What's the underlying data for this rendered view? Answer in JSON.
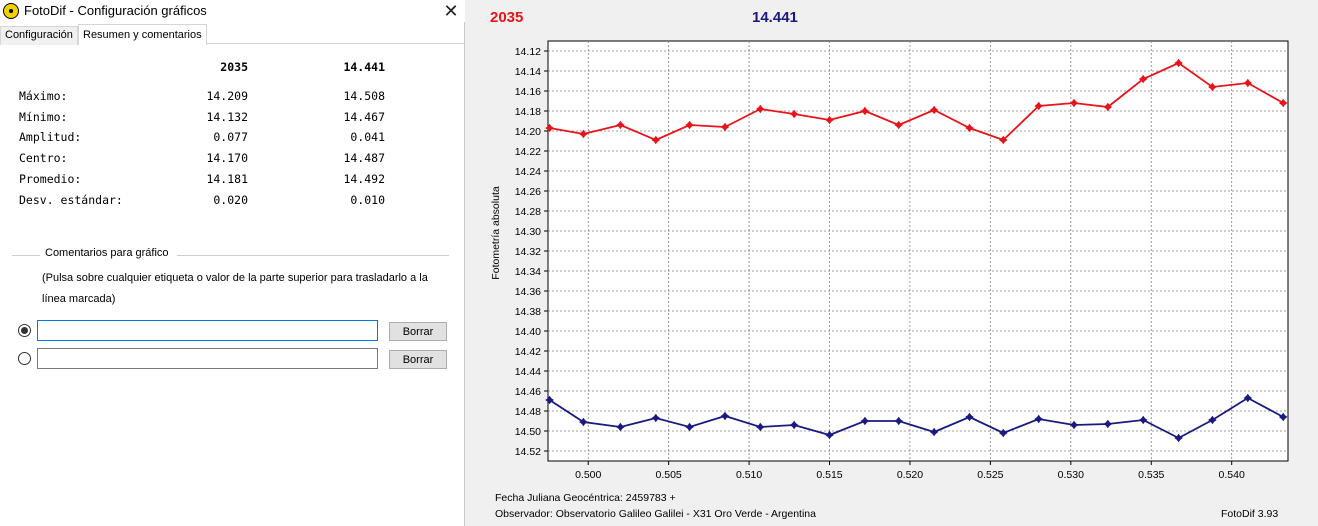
{
  "window": {
    "title": "FotoDif - Configuración gráficos",
    "close_icon": "close-icon"
  },
  "tabs": [
    {
      "label": "Configuración",
      "active": false
    },
    {
      "label": "Resumen y comentarios",
      "active": true
    }
  ],
  "summary": {
    "headers": [
      "2035",
      "14.441"
    ],
    "rows": [
      {
        "label": "Máximo:",
        "v1": "14.209",
        "v2": "14.508"
      },
      {
        "label": "Mínimo:",
        "v1": "14.132",
        "v2": "14.467"
      },
      {
        "label": "Amplitud:",
        "v1": "0.077",
        "v2": "0.041"
      },
      {
        "label": "Centro:",
        "v1": "14.170",
        "v2": "14.487"
      },
      {
        "label": "Promedio:",
        "v1": "14.181",
        "v2": "14.492"
      },
      {
        "label": "Desv. estándar:",
        "v1": "0.020",
        "v2": "0.010"
      }
    ]
  },
  "comments": {
    "group_title": "Comentarios para gráfico",
    "description": "(Pulsa sobre cualquier etiqueta o valor de la parte superior para trasladarlo a la línea marcada)",
    "lines": [
      {
        "value": "",
        "selected": true,
        "button": "Borrar"
      },
      {
        "value": "",
        "selected": false,
        "button": "Borrar"
      }
    ]
  },
  "chart_header": {
    "label1": "2035",
    "label2": "14.441",
    "color1": "#e8141a",
    "color2": "#1a1a80"
  },
  "chart_data": {
    "type": "line",
    "ylabel": "Fotometría absoluta",
    "xlabel": "",
    "xlim": [
      0.4975,
      0.5435
    ],
    "ylim": [
      14.11,
      14.53
    ],
    "y_inverted": true,
    "grid": true,
    "x_ticks": [
      0.5,
      0.505,
      0.51,
      0.515,
      0.52,
      0.525,
      0.53,
      0.535,
      0.54
    ],
    "x_tick_labels": [
      "0.500",
      "0.505",
      "0.510",
      "0.515",
      "0.520",
      "0.525",
      "0.530",
      "0.535",
      "0.540"
    ],
    "y_ticks": [
      14.12,
      14.14,
      14.16,
      14.18,
      14.2,
      14.22,
      14.24,
      14.26,
      14.28,
      14.3,
      14.32,
      14.34,
      14.36,
      14.38,
      14.4,
      14.42,
      14.44,
      14.46,
      14.48,
      14.5,
      14.52
    ],
    "y_tick_labels": [
      "14.12",
      "14.14",
      "14.16",
      "14.18",
      "14.20",
      "14.22",
      "14.24",
      "14.26",
      "14.28",
      "14.30",
      "14.32",
      "14.34",
      "14.36",
      "14.38",
      "14.40",
      "14.42",
      "14.44",
      "14.46",
      "14.48",
      "14.50",
      "14.52"
    ],
    "x": [
      0.4976,
      0.4997,
      0.502,
      0.5042,
      0.5063,
      0.5085,
      0.5107,
      0.5128,
      0.515,
      0.5172,
      0.5193,
      0.5215,
      0.5237,
      0.5258,
      0.528,
      0.5302,
      0.5323,
      0.5345,
      0.5367,
      0.5388,
      0.541,
      0.5432
    ],
    "series": [
      {
        "name": "2035",
        "color": "#e8141a",
        "values": [
          14.197,
          14.203,
          14.194,
          14.209,
          14.194,
          14.196,
          14.178,
          14.183,
          14.189,
          14.18,
          14.194,
          14.179,
          14.197,
          14.209,
          14.175,
          14.172,
          14.176,
          14.148,
          14.132,
          14.156,
          14.152,
          14.172
        ]
      },
      {
        "name": "14.441",
        "color": "#1a1a80",
        "values": [
          14.469,
          14.491,
          14.496,
          14.487,
          14.496,
          14.485,
          14.496,
          14.494,
          14.504,
          14.49,
          14.49,
          14.501,
          14.486,
          14.502,
          14.488,
          14.494,
          14.493,
          14.489,
          14.507,
          14.489,
          14.467,
          14.486
        ]
      }
    ]
  },
  "footer": {
    "line1": "Fecha Juliana Geocéntrica: 2459783 +",
    "line2": "Observador: Observatorio Galileo Galilei - X31 Oro Verde - Argentina",
    "version": "FotoDif 3.93"
  }
}
